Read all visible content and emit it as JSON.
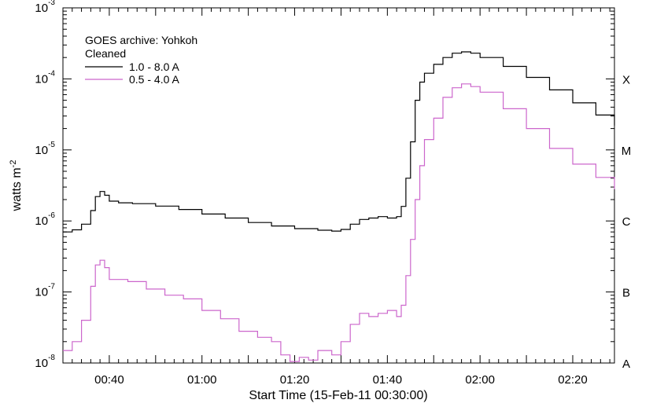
{
  "chart_data": {
    "type": "line",
    "title": "",
    "xlabel": "Start Time (15-Feb-11 00:30:00)",
    "ylabel": "watts m",
    "ylabel_superscript": "-2",
    "x_unit": "minutes after 00:30:00",
    "xlim": [
      0,
      119
    ],
    "ylim": [
      1e-08,
      0.001
    ],
    "y_scale": "log",
    "grid": false,
    "x_ticks": [
      {
        "value": 10,
        "label": "00:40"
      },
      {
        "value": 30,
        "label": "01:00"
      },
      {
        "value": 50,
        "label": "01:20"
      },
      {
        "value": 70,
        "label": "01:40"
      },
      {
        "value": 90,
        "label": "02:00"
      },
      {
        "value": 110,
        "label": "02:20"
      }
    ],
    "y_ticks": [
      {
        "value": 1e-08,
        "base": "10",
        "exponent": "-8"
      },
      {
        "value": 1e-07,
        "base": "10",
        "exponent": "-7"
      },
      {
        "value": 1e-06,
        "base": "10",
        "exponent": "-6"
      },
      {
        "value": 1e-05,
        "base": "10",
        "exponent": "-5"
      },
      {
        "value": 0.0001,
        "base": "10",
        "exponent": "-4"
      },
      {
        "value": 0.001,
        "base": "10",
        "exponent": "-3"
      }
    ],
    "class_labels": [
      {
        "value": 1e-08,
        "label": "A"
      },
      {
        "value": 1e-07,
        "label": "B"
      },
      {
        "value": 1e-06,
        "label": "C"
      },
      {
        "value": 1e-05,
        "label": "M"
      },
      {
        "value": 0.0001,
        "label": "X"
      }
    ],
    "legend": {
      "placement": "top-left",
      "lines": [
        "GOES archive: Yohkoh",
        "Cleaned"
      ],
      "entries": [
        {
          "label": "1.0 - 8.0 A",
          "color": "#000000"
        },
        {
          "label": "0.5 - 4.0 A",
          "color": "#cc66cc"
        }
      ]
    },
    "series": [
      {
        "name": "1.0 - 8.0 A",
        "color": "#000000",
        "points": [
          [
            0,
            7e-07
          ],
          [
            2,
            7.5e-07
          ],
          [
            4,
            9e-07
          ],
          [
            6,
            1.4e-06
          ],
          [
            7,
            2.2e-06
          ],
          [
            8,
            2.6e-06
          ],
          [
            9,
            2.3e-06
          ],
          [
            10,
            1.9e-06
          ],
          [
            12,
            1.8e-06
          ],
          [
            15,
            1.75e-06
          ],
          [
            20,
            1.62e-06
          ],
          [
            25,
            1.45e-06
          ],
          [
            30,
            1.25e-06
          ],
          [
            35,
            1.1e-06
          ],
          [
            40,
            9.5e-07
          ],
          [
            45,
            8.5e-07
          ],
          [
            50,
            7.8e-07
          ],
          [
            55,
            7.4e-07
          ],
          [
            58,
            7.2e-07
          ],
          [
            60,
            7.6e-07
          ],
          [
            62,
            9e-07
          ],
          [
            64,
            1.05e-06
          ],
          [
            66,
            1.1e-06
          ],
          [
            68,
            1.15e-06
          ],
          [
            70,
            1.1e-06
          ],
          [
            72,
            1.15e-06
          ],
          [
            73,
            1.6e-06
          ],
          [
            74,
            4e-06
          ],
          [
            75,
            1.3e-05
          ],
          [
            76,
            5e-05
          ],
          [
            77,
            9e-05
          ],
          [
            78,
            0.00012
          ],
          [
            80,
            0.00016
          ],
          [
            82,
            0.0002
          ],
          [
            84,
            0.00023
          ],
          [
            86,
            0.00024
          ],
          [
            88,
            0.00023
          ],
          [
            90,
            0.0002
          ],
          [
            95,
            0.00015
          ],
          [
            100,
            0.000105
          ],
          [
            105,
            7e-05
          ],
          [
            110,
            4.6e-05
          ],
          [
            115,
            3.1e-05
          ],
          [
            119,
            2.2e-05
          ]
        ]
      },
      {
        "name": "0.5 - 4.0 A",
        "color": "#cc66cc",
        "points": [
          [
            0,
            1.5e-08
          ],
          [
            2,
            2e-08
          ],
          [
            4,
            4e-08
          ],
          [
            6,
            1.2e-07
          ],
          [
            7,
            2.4e-07
          ],
          [
            8,
            2.8e-07
          ],
          [
            9,
            2.2e-07
          ],
          [
            10,
            1.5e-07
          ],
          [
            14,
            1.4e-07
          ],
          [
            18,
            1.1e-07
          ],
          [
            22,
            9e-08
          ],
          [
            26,
            8e-08
          ],
          [
            30,
            5.5e-08
          ],
          [
            34,
            4.2e-08
          ],
          [
            38,
            2.8e-08
          ],
          [
            42,
            2.3e-08
          ],
          [
            45,
            2e-08
          ],
          [
            47,
            1.3e-08
          ],
          [
            49,
            1.05e-08
          ],
          [
            51,
            1.2e-08
          ],
          [
            53,
            1.1e-08
          ],
          [
            55,
            1.5e-08
          ],
          [
            58,
            1.3e-08
          ],
          [
            60,
            2e-08
          ],
          [
            62,
            3.5e-08
          ],
          [
            64,
            5e-08
          ],
          [
            66,
            4.5e-08
          ],
          [
            68,
            5e-08
          ],
          [
            70,
            5.5e-08
          ],
          [
            72,
            4.5e-08
          ],
          [
            73,
            6.5e-08
          ],
          [
            74,
            1.7e-07
          ],
          [
            75,
            5.5e-07
          ],
          [
            76,
            2e-06
          ],
          [
            77,
            6e-06
          ],
          [
            78,
            1.4e-05
          ],
          [
            80,
            2.8e-05
          ],
          [
            82,
            5.5e-05
          ],
          [
            84,
            7.5e-05
          ],
          [
            86,
            8.5e-05
          ],
          [
            88,
            7.8e-05
          ],
          [
            90,
            6.5e-05
          ],
          [
            95,
            3.8e-05
          ],
          [
            100,
            2e-05
          ],
          [
            105,
            1.05e-05
          ],
          [
            110,
            6.3e-06
          ],
          [
            115,
            4.1e-06
          ],
          [
            119,
            2.8e-06
          ]
        ]
      }
    ]
  }
}
